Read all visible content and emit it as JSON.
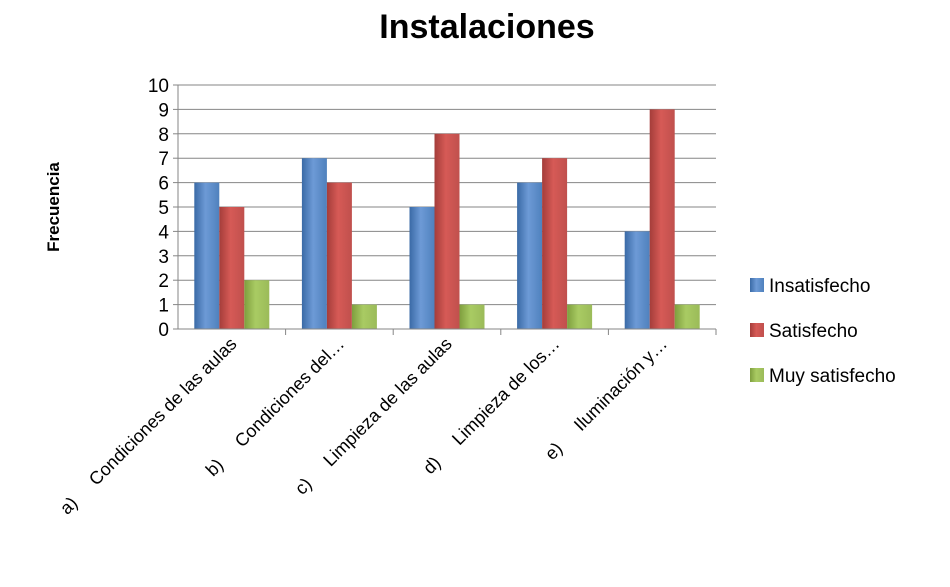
{
  "chart_data": {
    "type": "bar",
    "title": "Instalaciones",
    "ylabel": "Frecuencia",
    "xlabel": "",
    "ylim": [
      0,
      10
    ],
    "yticks": [
      0,
      1,
      2,
      3,
      4,
      5,
      6,
      7,
      8,
      9,
      10
    ],
    "grid": true,
    "legend_position": "right",
    "categories": [
      "a)     Condiciones de las aulas",
      "b)     Condiciones del…",
      "c)     Limpieza de las aulas",
      "d)     Limpieza de los…",
      "e)     Iluminación y…"
    ],
    "series": [
      {
        "name": "Insatisfecho",
        "values": [
          6,
          7,
          5,
          6,
          4
        ],
        "color": "#4f81bd",
        "color_light": "#6d9ad6",
        "color_dark": "#3a6aa6"
      },
      {
        "name": "Satisfecho",
        "values": [
          5,
          6,
          8,
          7,
          9
        ],
        "color": "#c0504d",
        "color_light": "#d65a56",
        "color_dark": "#a43d3a"
      },
      {
        "name": "Muy satisfecho",
        "values": [
          2,
          1,
          1,
          1,
          1
        ],
        "color": "#9bbb59",
        "color_light": "#a9cb63",
        "color_dark": "#7e9e3e"
      }
    ]
  }
}
